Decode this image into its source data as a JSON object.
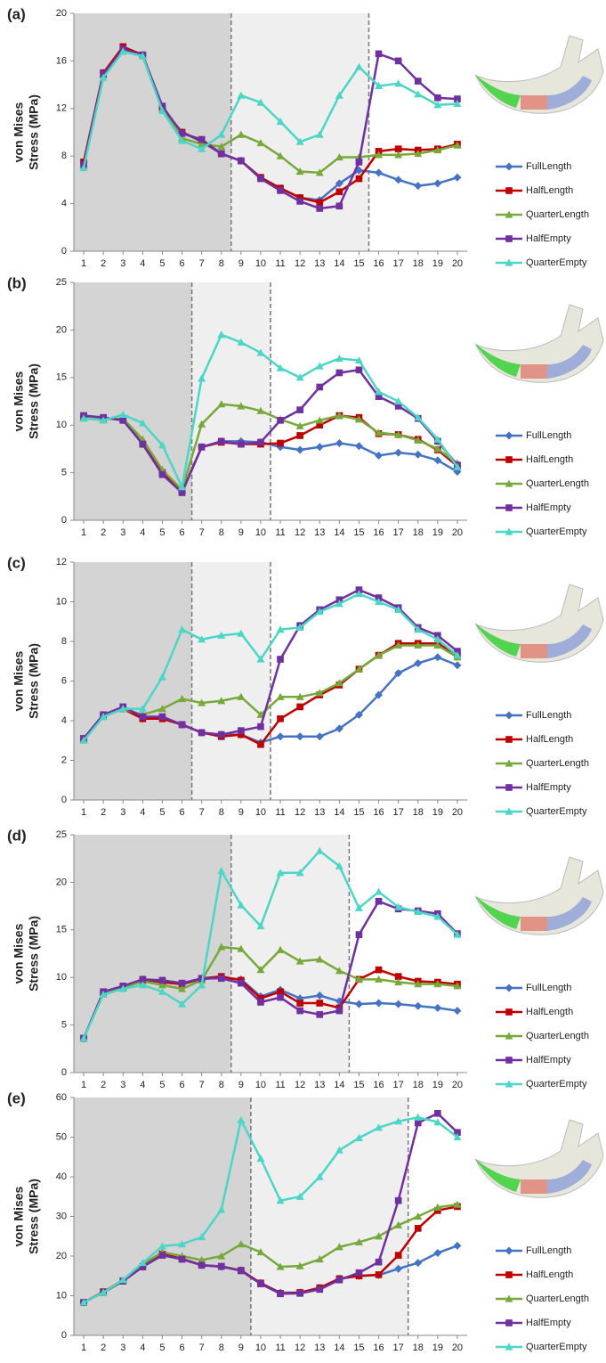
{
  "chart_data": [
    {
      "type": "line",
      "label": "(a)",
      "ylabel": [
        "von Mises",
        "Stress (MPa)"
      ],
      "x": [
        1,
        2,
        3,
        4,
        5,
        6,
        7,
        8,
        9,
        10,
        11,
        12,
        13,
        14,
        15,
        16,
        17,
        18,
        19,
        20
      ],
      "xlim": [
        0.5,
        20.5
      ],
      "xticks": [
        1,
        2,
        3,
        4,
        5,
        6,
        7,
        8,
        9,
        10,
        11,
        12,
        13,
        14,
        15,
        16,
        17,
        18,
        19,
        20
      ],
      "ylim": [
        0,
        20
      ],
      "yticks": [
        0,
        4,
        8,
        12,
        16,
        20
      ],
      "region_bounds": [
        8.5,
        15.5
      ],
      "series": [
        {
          "name": "FullLength",
          "color": "#4472c4",
          "marker": "diamond",
          "values": [
            7.5,
            15,
            17,
            16.5,
            12,
            10,
            9.2,
            8.2,
            7.6,
            6.2,
            5.3,
            4.5,
            4.3,
            5.7,
            6.8,
            6.6,
            6,
            5.5,
            5.7,
            6.2
          ]
        },
        {
          "name": "HalfLength",
          "color": "#c00000",
          "marker": "square",
          "values": [
            7.5,
            15,
            17.2,
            16.5,
            12,
            10,
            9.3,
            8.2,
            7.6,
            6.2,
            5.3,
            4.5,
            4.1,
            5,
            6.1,
            8.4,
            8.6,
            8.5,
            8.6,
            9
          ]
        },
        {
          "name": "QuarterLength",
          "color": "#77a93a",
          "marker": "triangle",
          "values": [
            7.2,
            14.8,
            16.8,
            16.4,
            12,
            9.5,
            9,
            8.8,
            9.8,
            9.1,
            8,
            6.7,
            6.6,
            7.9,
            7.9,
            8.1,
            8.1,
            8.2,
            8.5,
            8.9
          ]
        },
        {
          "name": "HalfEmpty",
          "color": "#7030a0",
          "marker": "square",
          "values": [
            7.3,
            14.9,
            17,
            16.5,
            12.2,
            9.9,
            9.4,
            8.2,
            7.6,
            6.1,
            5.1,
            4.2,
            3.6,
            3.8,
            7.5,
            16.6,
            16,
            14.3,
            12.9,
            12.8
          ]
        },
        {
          "name": "QuarterEmpty",
          "color": "#4bd6c6",
          "marker": "triangle",
          "values": [
            7,
            14.6,
            16.8,
            16.4,
            11.8,
            9.3,
            8.6,
            9.8,
            13.1,
            12.5,
            10.9,
            9.2,
            9.8,
            13.1,
            15.5,
            13.9,
            14.1,
            13.2,
            12.3,
            12.4
          ]
        }
      ]
    },
    {
      "type": "line",
      "label": "(b)",
      "ylabel": [
        "von Mises",
        "Stress (MPa)"
      ],
      "x": [
        1,
        2,
        3,
        4,
        5,
        6,
        7,
        8,
        9,
        10,
        11,
        12,
        13,
        14,
        15,
        16,
        17,
        18,
        19,
        20
      ],
      "xlim": [
        0.5,
        20.5
      ],
      "xticks": [
        1,
        2,
        3,
        4,
        5,
        6,
        7,
        8,
        9,
        10,
        11,
        12,
        13,
        14,
        15,
        16,
        17,
        18,
        19,
        20
      ],
      "ylim": [
        0,
        25
      ],
      "yticks": [
        0,
        5,
        10,
        15,
        20,
        25
      ],
      "region_bounds": [
        6.5,
        10.5
      ],
      "series": [
        {
          "name": "FullLength",
          "color": "#4472c4",
          "marker": "diamond",
          "values": [
            10.9,
            10.7,
            10.6,
            8,
            5,
            3,
            7.7,
            8.3,
            8.3,
            8.2,
            7.7,
            7.4,
            7.7,
            8.1,
            7.8,
            6.8,
            7.1,
            6.9,
            6.3,
            5.1
          ]
        },
        {
          "name": "HalfLength",
          "color": "#c00000",
          "marker": "square",
          "values": [
            10.9,
            10.7,
            10.6,
            8,
            5,
            3,
            7.7,
            8.2,
            8,
            8,
            8.1,
            8.9,
            10,
            11,
            10.8,
            9.1,
            9,
            8.5,
            7.4,
            5.7
          ]
        },
        {
          "name": "QuarterLength",
          "color": "#77a93a",
          "marker": "triangle",
          "values": [
            10.8,
            10.6,
            10.7,
            8.5,
            5.3,
            3.2,
            10.1,
            12.2,
            12,
            11.5,
            10.6,
            9.9,
            10.5,
            11,
            10.6,
            9.2,
            9,
            8.4,
            7.5,
            6
          ]
        },
        {
          "name": "HalfEmpty",
          "color": "#7030a0",
          "marker": "square",
          "values": [
            11,
            10.8,
            10.5,
            8,
            4.8,
            2.9,
            7.7,
            8.3,
            8,
            8.2,
            10.5,
            11.6,
            14,
            15.5,
            15.8,
            13,
            12,
            10.7,
            8.3,
            5.8
          ]
        },
        {
          "name": "QuarterEmpty",
          "color": "#4bd6c6",
          "marker": "triangle",
          "values": [
            10.7,
            10.5,
            11.1,
            10.2,
            7.9,
            3.5,
            14.9,
            19.5,
            18.7,
            17.6,
            16,
            15,
            16.2,
            17,
            16.8,
            13.5,
            12.5,
            10.8,
            8.5,
            5.6
          ]
        }
      ]
    },
    {
      "type": "line",
      "label": "(c)",
      "ylabel": [
        "von Mises",
        "Stress (MPa)"
      ],
      "x": [
        1,
        2,
        3,
        4,
        5,
        6,
        7,
        8,
        9,
        10,
        11,
        12,
        13,
        14,
        15,
        16,
        17,
        18,
        19,
        20
      ],
      "xlim": [
        0.5,
        20.5
      ],
      "xticks": [
        1,
        2,
        3,
        4,
        5,
        6,
        7,
        8,
        9,
        10,
        11,
        12,
        13,
        14,
        15,
        16,
        17,
        18,
        19,
        20
      ],
      "ylim": [
        0,
        12
      ],
      "yticks": [
        0,
        2,
        4,
        6,
        8,
        10,
        12
      ],
      "region_bounds": [
        6.5,
        10.5
      ],
      "series": [
        {
          "name": "FullLength",
          "color": "#4472c4",
          "marker": "diamond",
          "values": [
            3.1,
            4.3,
            4.6,
            4.1,
            4.1,
            3.8,
            3.4,
            3.3,
            3.3,
            2.9,
            3.2,
            3.2,
            3.2,
            3.6,
            4.3,
            5.3,
            6.4,
            6.9,
            7.2,
            6.8
          ]
        },
        {
          "name": "HalfLength",
          "color": "#c00000",
          "marker": "square",
          "values": [
            3.1,
            4.3,
            4.6,
            4.1,
            4.1,
            3.8,
            3.4,
            3.2,
            3.3,
            2.8,
            4.1,
            4.7,
            5.3,
            5.8,
            6.6,
            7.3,
            7.9,
            7.9,
            7.9,
            7.3
          ]
        },
        {
          "name": "QuarterLength",
          "color": "#77a93a",
          "marker": "triangle",
          "values": [
            3.1,
            4.2,
            4.6,
            4.3,
            4.6,
            5.1,
            4.9,
            5,
            5.2,
            4.3,
            5.2,
            5.2,
            5.4,
            5.9,
            6.6,
            7.3,
            7.8,
            7.8,
            7.8,
            7.2
          ]
        },
        {
          "name": "HalfEmpty",
          "color": "#7030a0",
          "marker": "square",
          "values": [
            3.1,
            4.3,
            4.7,
            4.2,
            4.2,
            3.8,
            3.4,
            3.3,
            3.5,
            3.7,
            7.1,
            8.8,
            9.6,
            10.1,
            10.6,
            10.2,
            9.7,
            8.7,
            8.3,
            7.5
          ]
        },
        {
          "name": "QuarterEmpty",
          "color": "#4bd6c6",
          "marker": "triangle",
          "values": [
            3,
            4.2,
            4.6,
            4.6,
            6.2,
            8.6,
            8.1,
            8.3,
            8.4,
            7.1,
            8.6,
            8.7,
            9.5,
            9.9,
            10.4,
            10,
            9.6,
            8.6,
            8.1,
            7.3
          ]
        }
      ]
    },
    {
      "type": "line",
      "label": "(d)",
      "ylabel": [
        "von Mises",
        "Stress (MPa)"
      ],
      "x": [
        1,
        2,
        3,
        4,
        5,
        6,
        7,
        8,
        9,
        10,
        11,
        12,
        13,
        14,
        15,
        16,
        17,
        18,
        19,
        20
      ],
      "xlim": [
        0.5,
        20.5
      ],
      "xticks": [
        1,
        2,
        3,
        4,
        5,
        6,
        7,
        8,
        9,
        10,
        11,
        12,
        13,
        14,
        15,
        16,
        17,
        18,
        19,
        20
      ],
      "ylim": [
        0,
        25
      ],
      "yticks": [
        0,
        5,
        10,
        15,
        20,
        25
      ],
      "region_bounds": [
        8.5,
        14.5
      ],
      "series": [
        {
          "name": "FullLength",
          "color": "#4472c4",
          "marker": "diamond",
          "values": [
            3.6,
            8.4,
            9,
            9.8,
            9.5,
            9.3,
            9.8,
            10,
            9.8,
            8,
            8.7,
            7.8,
            8.1,
            7.5,
            7.2,
            7.3,
            7.2,
            7,
            6.8,
            6.5
          ]
        },
        {
          "name": "HalfLength",
          "color": "#c00000",
          "marker": "square",
          "values": [
            3.6,
            8.4,
            9,
            9.8,
            9.5,
            9.3,
            9.9,
            10.1,
            9.7,
            7.8,
            8.5,
            7.3,
            7.3,
            6.8,
            9.8,
            10.8,
            10.1,
            9.6,
            9.5,
            9.3
          ]
        },
        {
          "name": "QuarterLength",
          "color": "#77a93a",
          "marker": "triangle",
          "values": [
            3.6,
            8.4,
            8.9,
            9.6,
            9.2,
            8.8,
            9.7,
            13.2,
            13,
            10.8,
            12.9,
            11.7,
            11.9,
            10.7,
            9.8,
            9.8,
            9.5,
            9.3,
            9.3,
            9.1
          ]
        },
        {
          "name": "HalfEmpty",
          "color": "#7030a0",
          "marker": "square",
          "values": [
            3.6,
            8.5,
            9.1,
            9.8,
            9.7,
            9.4,
            9.9,
            9.9,
            9.4,
            7.4,
            7.9,
            6.5,
            6.1,
            6.5,
            14.5,
            18,
            17.2,
            17,
            16.7,
            14.6
          ]
        },
        {
          "name": "QuarterEmpty",
          "color": "#4bd6c6",
          "marker": "triangle",
          "values": [
            3.6,
            8.2,
            8.8,
            9.2,
            8.5,
            7.2,
            9.2,
            21.2,
            17.6,
            15.4,
            21,
            21,
            23.3,
            21.7,
            17.3,
            19,
            17.4,
            16.9,
            16.4,
            14.5
          ]
        }
      ]
    },
    {
      "type": "line",
      "label": "(e)",
      "ylabel": [
        "von Mises",
        "Stress (MPa)"
      ],
      "x": [
        1,
        2,
        3,
        4,
        5,
        6,
        7,
        8,
        9,
        10,
        11,
        12,
        13,
        14,
        15,
        16,
        17,
        18,
        19,
        20
      ],
      "xlim": [
        0.5,
        20.5
      ],
      "xticks": [
        1,
        2,
        3,
        4,
        5,
        6,
        7,
        8,
        9,
        10,
        11,
        12,
        13,
        14,
        15,
        16,
        17,
        18,
        19,
        20
      ],
      "ylim": [
        0,
        60
      ],
      "yticks": [
        0,
        10,
        20,
        30,
        40,
        50,
        60
      ],
      "region_bounds": [
        9.5,
        17.5
      ],
      "series": [
        {
          "name": "FullLength",
          "color": "#4472c4",
          "marker": "diamond",
          "values": [
            8.3,
            11,
            13.7,
            17.3,
            20.5,
            19.3,
            17.7,
            17.3,
            16.4,
            13.2,
            10.8,
            10.8,
            12,
            14.3,
            15,
            15.2,
            16.8,
            18.3,
            20.8,
            22.6
          ]
        },
        {
          "name": "HalfLength",
          "color": "#c00000",
          "marker": "square",
          "values": [
            8.3,
            11,
            13.7,
            17.3,
            20.5,
            19.3,
            17.7,
            17.4,
            16.4,
            13.2,
            10.6,
            10.8,
            12,
            14.3,
            15,
            15.3,
            20.2,
            27,
            31.5,
            32.5
          ]
        },
        {
          "name": "QuarterLength",
          "color": "#77a93a",
          "marker": "triangle",
          "values": [
            8.3,
            11,
            14,
            18,
            21,
            20,
            19,
            20,
            23,
            21,
            17.3,
            17.5,
            19.2,
            22.3,
            23.5,
            25,
            27.8,
            30,
            32.3,
            33
          ]
        },
        {
          "name": "HalfEmpty",
          "color": "#7030a0",
          "marker": "square",
          "values": [
            8.3,
            10.8,
            13.7,
            17.3,
            20.2,
            19.2,
            17.7,
            17.4,
            16.3,
            13,
            10.5,
            10.6,
            11.6,
            14,
            15.8,
            18.5,
            34,
            53.6,
            56,
            51.2
          ]
        },
        {
          "name": "QuarterEmpty",
          "color": "#4bd6c6",
          "marker": "triangle",
          "values": [
            8.3,
            10.8,
            14,
            18.3,
            22.5,
            23,
            24.8,
            31.7,
            54.3,
            44.6,
            34,
            35,
            40,
            46.7,
            49.8,
            52.4,
            54,
            55,
            53.8,
            50
          ]
        }
      ]
    }
  ]
}
